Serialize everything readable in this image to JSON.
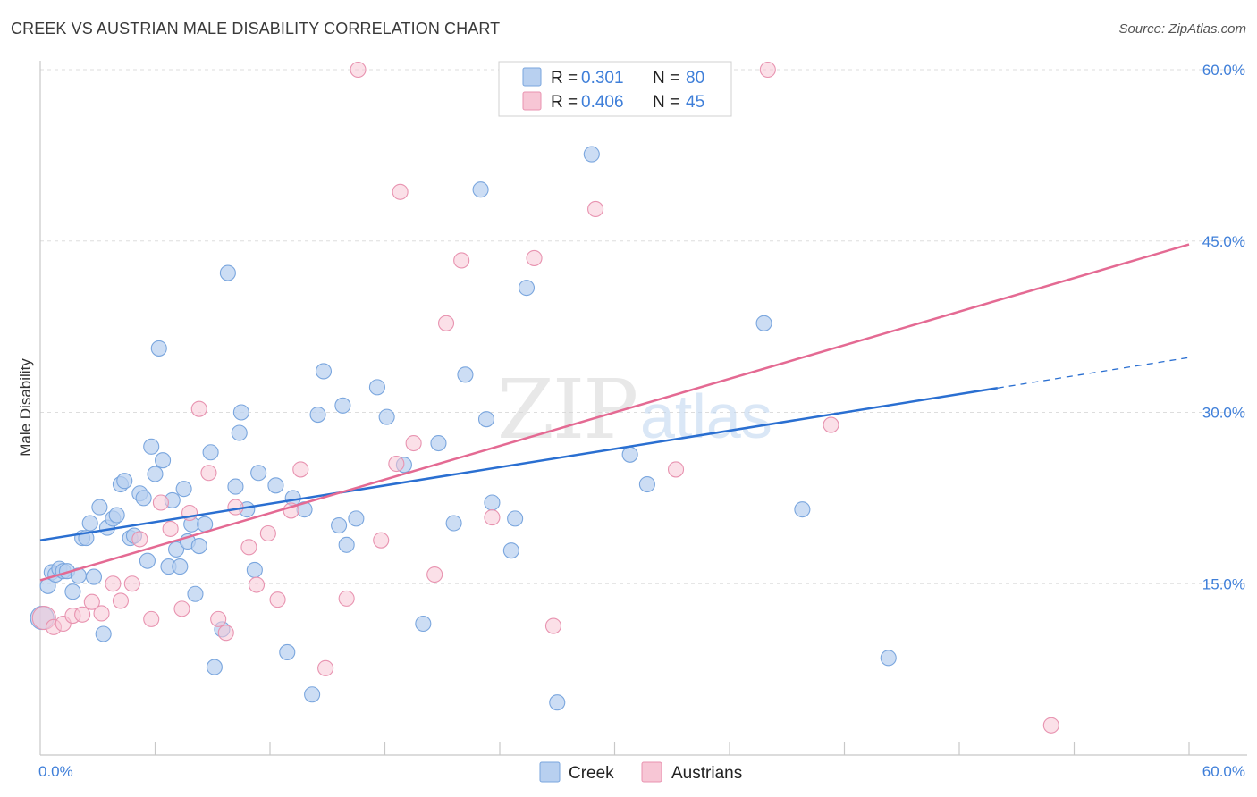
{
  "chart_data": {
    "type": "scatter",
    "title": "CREEK VS AUSTRIAN MALE DISABILITY CORRELATION CHART",
    "source": "Source: ZipAtlas.com",
    "xlabel": "",
    "ylabel": "Male Disability",
    "xlim": [
      0,
      60
    ],
    "ylim": [
      0,
      60
    ],
    "x_tick_labels": [
      "0.0%",
      "60.0%"
    ],
    "y_ticks": [
      15,
      30,
      45,
      60
    ],
    "y_tick_labels": [
      "15.0%",
      "30.0%",
      "45.0%",
      "60.0%"
    ],
    "watermark": "ZIPatlas",
    "colors": {
      "creek_fill": "#b8d0f0",
      "creek_stroke": "#7aa6de",
      "creek_line": "#2a6fd1",
      "austrians_fill": "#f7c6d5",
      "austrians_stroke": "#e893b0",
      "austrians_line": "#e46a93",
      "value_text": "#3f7fd9",
      "grid": "#dddddd"
    },
    "legend": [
      {
        "r_label": "R =",
        "r": "0.301",
        "n_label": "N =",
        "n": "80"
      },
      {
        "r_label": "R =",
        "r": "0.406",
        "n_label": "N =",
        "n": "45"
      }
    ],
    "series": [
      {
        "name": "Creek",
        "r": 0.301,
        "n": 80,
        "trend": {
          "x0": 0,
          "y0": 18.8,
          "x1": 60,
          "y1": 34.8,
          "solid_until": 50
        },
        "points": [
          [
            0.1,
            12.0
          ],
          [
            0.4,
            14.8
          ],
          [
            0.6,
            16.0
          ],
          [
            0.8,
            15.8
          ],
          [
            1.0,
            16.3
          ],
          [
            1.2,
            16.1
          ],
          [
            1.4,
            16.1
          ],
          [
            1.7,
            14.3
          ],
          [
            2.0,
            15.7
          ],
          [
            2.2,
            19.0
          ],
          [
            2.4,
            19.0
          ],
          [
            2.6,
            20.3
          ],
          [
            2.8,
            15.6
          ],
          [
            3.1,
            21.7
          ],
          [
            3.3,
            10.6
          ],
          [
            3.5,
            19.9
          ],
          [
            3.8,
            20.7
          ],
          [
            4.0,
            21.0
          ],
          [
            4.2,
            23.7
          ],
          [
            4.4,
            24.0
          ],
          [
            4.7,
            19.0
          ],
          [
            4.9,
            19.2
          ],
          [
            5.2,
            22.9
          ],
          [
            5.4,
            22.5
          ],
          [
            5.6,
            17.0
          ],
          [
            5.8,
            27.0
          ],
          [
            6.0,
            24.6
          ],
          [
            6.2,
            35.6
          ],
          [
            6.4,
            25.8
          ],
          [
            6.7,
            16.5
          ],
          [
            6.9,
            22.3
          ],
          [
            7.1,
            18.0
          ],
          [
            7.3,
            16.5
          ],
          [
            7.5,
            23.3
          ],
          [
            7.7,
            18.7
          ],
          [
            7.9,
            20.2
          ],
          [
            8.1,
            14.1
          ],
          [
            8.3,
            18.3
          ],
          [
            8.6,
            20.2
          ],
          [
            8.9,
            26.5
          ],
          [
            9.1,
            7.7
          ],
          [
            9.5,
            11.0
          ],
          [
            9.8,
            42.2
          ],
          [
            10.2,
            23.5
          ],
          [
            10.4,
            28.2
          ],
          [
            10.5,
            30.0
          ],
          [
            10.8,
            21.5
          ],
          [
            11.2,
            16.2
          ],
          [
            11.4,
            24.7
          ],
          [
            12.3,
            23.6
          ],
          [
            12.9,
            9.0
          ],
          [
            13.2,
            22.5
          ],
          [
            13.8,
            21.5
          ],
          [
            14.2,
            5.3
          ],
          [
            14.5,
            29.8
          ],
          [
            14.8,
            33.6
          ],
          [
            15.6,
            20.1
          ],
          [
            15.8,
            30.6
          ],
          [
            16.0,
            18.4
          ],
          [
            16.5,
            20.7
          ],
          [
            17.6,
            32.2
          ],
          [
            18.1,
            29.6
          ],
          [
            19.0,
            25.4
          ],
          [
            20.0,
            11.5
          ],
          [
            20.8,
            27.3
          ],
          [
            21.6,
            20.3
          ],
          [
            22.2,
            33.3
          ],
          [
            23.0,
            49.5
          ],
          [
            23.3,
            29.4
          ],
          [
            23.6,
            22.1
          ],
          [
            24.8,
            20.7
          ],
          [
            24.6,
            17.9
          ],
          [
            25.4,
            40.9
          ],
          [
            27.0,
            4.6
          ],
          [
            28.8,
            52.6
          ],
          [
            30.8,
            26.3
          ],
          [
            31.7,
            23.7
          ],
          [
            37.8,
            37.8
          ],
          [
            39.8,
            21.5
          ],
          [
            44.3,
            8.5
          ]
        ]
      },
      {
        "name": "Austrians",
        "r": 0.406,
        "n": 45,
        "trend": {
          "x0": 0,
          "y0": 15.3,
          "x1": 60,
          "y1": 44.7
        },
        "points": [
          [
            0.2,
            12.0
          ],
          [
            0.7,
            11.2
          ],
          [
            1.2,
            11.5
          ],
          [
            1.7,
            12.2
          ],
          [
            2.2,
            12.3
          ],
          [
            2.7,
            13.4
          ],
          [
            3.2,
            12.4
          ],
          [
            3.8,
            15.0
          ],
          [
            4.2,
            13.5
          ],
          [
            4.8,
            15.0
          ],
          [
            5.2,
            18.9
          ],
          [
            5.8,
            11.9
          ],
          [
            6.3,
            22.1
          ],
          [
            6.8,
            19.8
          ],
          [
            7.4,
            12.8
          ],
          [
            7.8,
            21.2
          ],
          [
            8.3,
            30.3
          ],
          [
            8.8,
            24.7
          ],
          [
            9.3,
            11.9
          ],
          [
            9.7,
            10.7
          ],
          [
            10.2,
            21.7
          ],
          [
            10.9,
            18.2
          ],
          [
            11.3,
            14.9
          ],
          [
            11.9,
            19.4
          ],
          [
            12.4,
            13.6
          ],
          [
            13.1,
            21.4
          ],
          [
            13.6,
            25.0
          ],
          [
            14.9,
            7.6
          ],
          [
            16.0,
            13.7
          ],
          [
            16.6,
            60.0
          ],
          [
            17.8,
            18.8
          ],
          [
            18.6,
            25.5
          ],
          [
            18.8,
            49.3
          ],
          [
            19.5,
            27.3
          ],
          [
            20.6,
            15.8
          ],
          [
            21.2,
            37.8
          ],
          [
            22.0,
            43.3
          ],
          [
            23.6,
            20.8
          ],
          [
            25.8,
            43.5
          ],
          [
            26.8,
            11.3
          ],
          [
            29.0,
            47.8
          ],
          [
            33.2,
            25.0
          ],
          [
            38.0,
            60.0
          ],
          [
            41.3,
            28.9
          ],
          [
            52.8,
            2.6
          ]
        ]
      }
    ]
  }
}
